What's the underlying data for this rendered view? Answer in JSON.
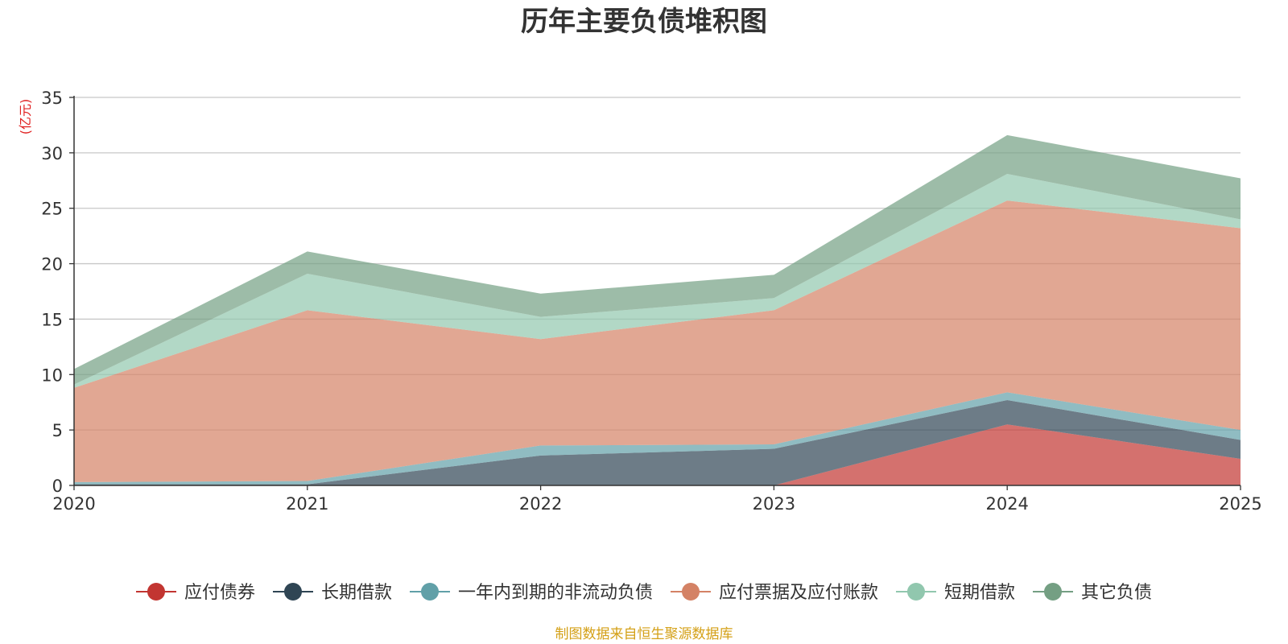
{
  "chart_data": {
    "type": "area",
    "stacked": true,
    "title": "历年主要负债堆积图",
    "ylabel": "(亿元)",
    "xlabel": "",
    "x": [
      "2020",
      "2021",
      "2022",
      "2023",
      "2024",
      "2025"
    ],
    "ylim": [
      0,
      35
    ],
    "yticks": [
      0,
      5,
      10,
      15,
      20,
      25,
      30,
      35
    ],
    "grid": true,
    "legend_position": "bottom",
    "series": [
      {
        "name": "应付债券",
        "color": "#c23531",
        "values": [
          0,
          0,
          0,
          0,
          5.5,
          2.4
        ]
      },
      {
        "name": "长期借款",
        "color": "#2f4554",
        "values": [
          0.1,
          0.1,
          2.7,
          3.3,
          2.2,
          1.7
        ]
      },
      {
        "name": "一年内到期的非流动负债",
        "color": "#61a0a8",
        "values": [
          0.2,
          0.3,
          0.9,
          0.4,
          0.7,
          0.9
        ]
      },
      {
        "name": "应付票据及应付账款",
        "color": "#d48265",
        "values": [
          8.5,
          15.4,
          9.6,
          12.1,
          17.3,
          18.2
        ]
      },
      {
        "name": "短期借款",
        "color": "#91c7ae",
        "values": [
          0.3,
          3.3,
          2.0,
          1.1,
          2.4,
          0.8
        ]
      },
      {
        "name": "其它负债",
        "color": "#749f83",
        "values": [
          1.4,
          2.0,
          2.1,
          2.1,
          3.5,
          3.7
        ]
      }
    ],
    "source_note": "制图数据来自恒生聚源数据库",
    "colors": {
      "unit_label": "#e02020",
      "source_note": "#d4a017",
      "grid": "#c8c8c8",
      "axis": "#333333"
    }
  }
}
